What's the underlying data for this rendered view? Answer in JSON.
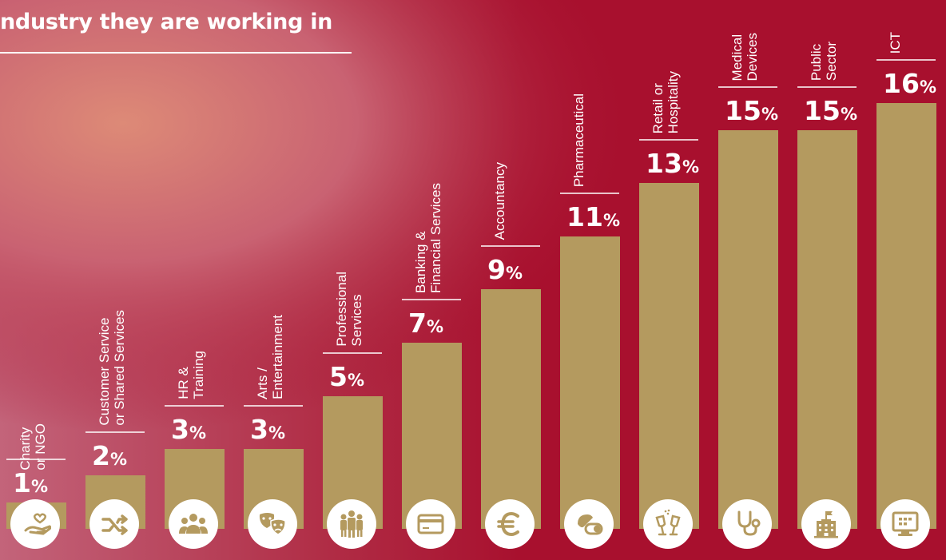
{
  "title": "ndustry they are working in",
  "colors": {
    "background": "#a8102e",
    "bar": "#b49a5f",
    "icon_fg": "#b49a5f",
    "icon_bg": "#ffffff"
  },
  "chart_data": {
    "type": "bar",
    "title": "ndustry they are working in",
    "unit": "%",
    "categories": [
      {
        "label": [
          "Charity",
          "or NGO"
        ],
        "icon": "hand-heart-icon"
      },
      {
        "label": [
          "Customer Service",
          "or Shared Services"
        ],
        "icon": "shuffle-icon"
      },
      {
        "label": [
          "HR &",
          "Training"
        ],
        "icon": "people-group-icon"
      },
      {
        "label": [
          "Arts /",
          "Entertainment"
        ],
        "icon": "theatre-masks-icon"
      },
      {
        "label": [
          "Professional",
          "Services"
        ],
        "icon": "business-people-icon"
      },
      {
        "label": [
          "Banking &",
          "Financial Services"
        ],
        "icon": "credit-card-icon"
      },
      {
        "label": [
          "Accountancy"
        ],
        "icon": "euro-icon"
      },
      {
        "label": [
          "Pharmaceutical"
        ],
        "icon": "pill-icon"
      },
      {
        "label": [
          "Retail or",
          "Hospitality"
        ],
        "icon": "wine-glasses-icon"
      },
      {
        "label": [
          "Medical",
          "Devices"
        ],
        "icon": "stethoscope-icon"
      },
      {
        "label": [
          "Public",
          "Sector"
        ],
        "icon": "government-building-icon"
      },
      {
        "label": [
          "ICT"
        ],
        "icon": "computer-monitor-icon"
      }
    ],
    "values": [
      1,
      2,
      3,
      3,
      5,
      7,
      9,
      11,
      13,
      15,
      15,
      16
    ]
  }
}
